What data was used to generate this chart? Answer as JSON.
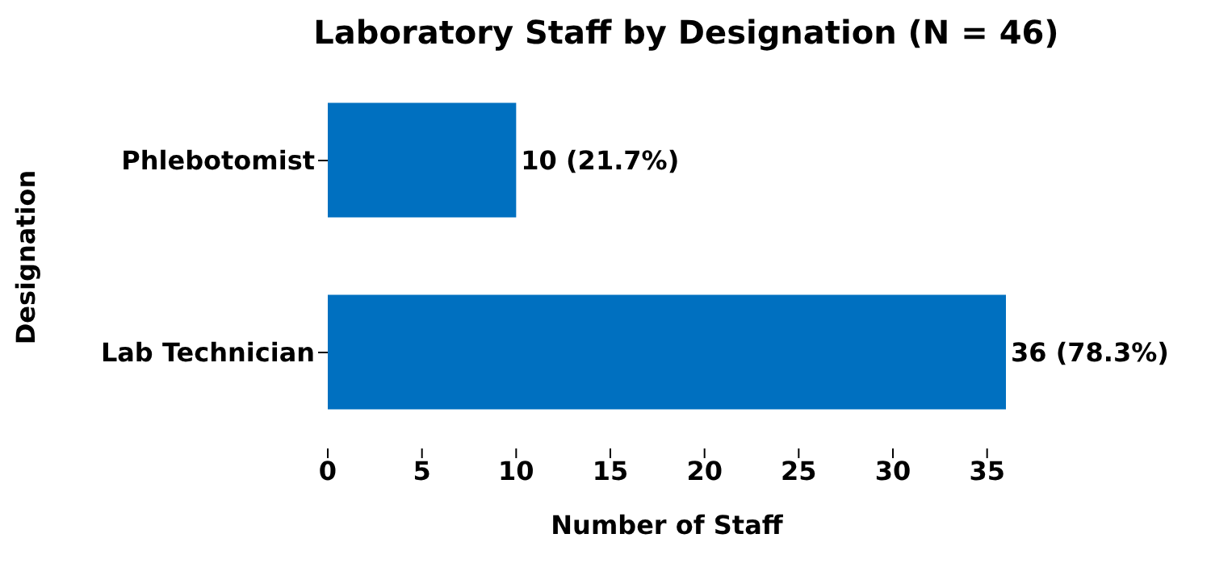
{
  "chart_data": {
    "type": "bar",
    "orientation": "horizontal",
    "title": "Laboratory Staff by Designation (N = 46)",
    "xlabel": "Number of Staff",
    "ylabel": "Designation",
    "categories": [
      "Phlebotomist",
      "Lab Technician"
    ],
    "values": [
      10,
      36
    ],
    "color": "#0070c0",
    "value_labels": [
      "10 (21.7%)",
      "36 (78.3%)"
    ],
    "xlim": [
      0,
      36
    ],
    "xticks": [
      0,
      5,
      10,
      15,
      20,
      25,
      30,
      35
    ],
    "grid": false
  }
}
